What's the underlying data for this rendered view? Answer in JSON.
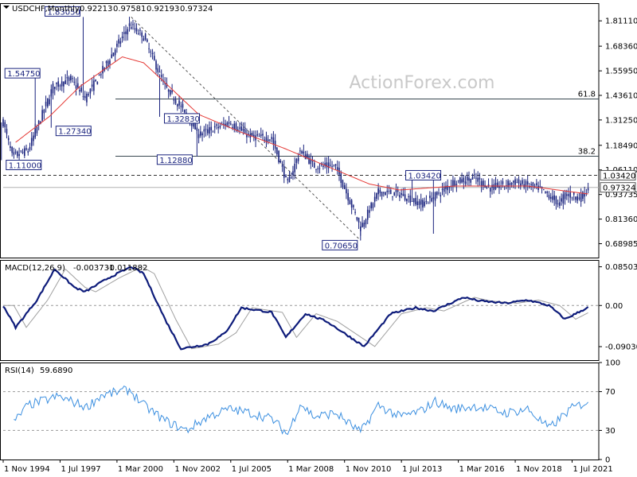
{
  "chart_data": {
    "type": "candlestick",
    "watermark": "ActionForex.com",
    "price_panel": {
      "header": {
        "symbol": "USDCHF,Monthly",
        "open": "0.92213",
        "high": "0.97581",
        "low": "0.92193",
        "close": "0.97324"
      },
      "ylim": [
        0.62,
        1.9
      ],
      "y_ticks": [
        1.8111,
        1.6836,
        1.5595,
        1.4361,
        1.3125,
        1.1849,
        1.0611,
        0.9373,
        0.8136,
        0.6899
      ],
      "y_tick_labels": [
        "1.81110",
        "1.68360",
        "1.55950",
        "1.43610",
        "1.31250",
        "1.18490",
        "1.06110",
        "0.93735",
        "0.81360",
        "0.68985"
      ],
      "current_price": "0.97324",
      "dashed_level": "1.03420",
      "fib_levels": [
        {
          "label": "61.8",
          "value": 1.418
        },
        {
          "label": "38.2",
          "value": 1.13
        }
      ],
      "annotations": [
        {
          "text": "1.83050",
          "date": "1998-08",
          "value": 1.8305
        },
        {
          "text": "1.54750",
          "date": "1996-05",
          "value": 1.5475
        },
        {
          "text": "1.27340",
          "date": "1997-02",
          "value": 1.2734
        },
        {
          "text": "1.11000",
          "date": "1994-10",
          "value": 1.11
        },
        {
          "text": "1.32830",
          "date": "2002-03",
          "value": 1.3283
        },
        {
          "text": "1.12880",
          "date": "2003-12",
          "value": 1.1288
        },
        {
          "text": "1.03420",
          "date": "2014-01",
          "value": 1.0342
        },
        {
          "text": "0.70650",
          "date": "2011-08",
          "value": 0.7065
        }
      ],
      "key_points": [
        {
          "date": "1994-11",
          "close": 1.3
        },
        {
          "date": "1995-04",
          "close": 1.13
        },
        {
          "date": "1996-01",
          "close": 1.16
        },
        {
          "date": "1997-03",
          "close": 1.48
        },
        {
          "date": "1998-01",
          "close": 1.52
        },
        {
          "date": "1998-09",
          "close": 1.42
        },
        {
          "date": "1999-06",
          "close": 1.55
        },
        {
          "date": "2000-10",
          "close": 1.79
        },
        {
          "date": "2001-06",
          "close": 1.73
        },
        {
          "date": "2002-06",
          "close": 1.48
        },
        {
          "date": "2003-06",
          "close": 1.34
        },
        {
          "date": "2004-01",
          "close": 1.24
        },
        {
          "date": "2005-06",
          "close": 1.3
        },
        {
          "date": "2006-06",
          "close": 1.23
        },
        {
          "date": "2007-06",
          "close": 1.22
        },
        {
          "date": "2008-03",
          "close": 0.99
        },
        {
          "date": "2008-10",
          "close": 1.16
        },
        {
          "date": "2009-06",
          "close": 1.08
        },
        {
          "date": "2010-06",
          "close": 1.08
        },
        {
          "date": "2011-08",
          "close": 0.77
        },
        {
          "date": "2012-06",
          "close": 0.95
        },
        {
          "date": "2013-06",
          "close": 0.94
        },
        {
          "date": "2014-06",
          "close": 0.89
        },
        {
          "date": "2015-02",
          "close": 0.93
        },
        {
          "date": "2015-12",
          "close": 1.0
        },
        {
          "date": "2016-12",
          "close": 1.02
        },
        {
          "date": "2017-09",
          "close": 0.97
        },
        {
          "date": "2018-11",
          "close": 1.0
        },
        {
          "date": "2019-12",
          "close": 0.97
        },
        {
          "date": "2020-12",
          "close": 0.89
        },
        {
          "date": "2021-03",
          "close": 0.94
        },
        {
          "date": "2021-12",
          "close": 0.92
        },
        {
          "date": "2022-04",
          "close": 0.97
        }
      ],
      "moving_average": [
        {
          "date": "1995-06",
          "value": 1.2
        },
        {
          "date": "1997-01",
          "value": 1.33
        },
        {
          "date": "1998-06",
          "value": 1.48
        },
        {
          "date": "2000-06",
          "value": 1.63
        },
        {
          "date": "2001-06",
          "value": 1.6
        },
        {
          "date": "2002-06",
          "value": 1.5
        },
        {
          "date": "2004-01",
          "value": 1.34
        },
        {
          "date": "2006-01",
          "value": 1.25
        },
        {
          "date": "2008-01",
          "value": 1.17
        },
        {
          "date": "2010-01",
          "value": 1.08
        },
        {
          "date": "2012-01",
          "value": 0.99
        },
        {
          "date": "2013-06",
          "value": 0.96
        },
        {
          "date": "2016-01",
          "value": 0.98
        },
        {
          "date": "2019-06",
          "value": 0.98
        },
        {
          "date": "2022-04",
          "value": 0.94
        }
      ],
      "trendline": [
        {
          "date": "2000-11",
          "value": 1.8305
        },
        {
          "date": "2011-08",
          "value": 0.7065
        }
      ]
    },
    "macd_panel": {
      "header": {
        "name": "MACD(12,26,9)",
        "macd": "-0.003731",
        "signal": "-0.011882"
      },
      "ylim": [
        -0.12,
        0.1
      ],
      "y_ticks": [
        0.085032,
        0.0,
        -0.090302
      ],
      "y_tick_labels": [
        "0.085032",
        "0.00",
        "-0.090302"
      ],
      "macd_points": [
        {
          "date": "1994-11",
          "value": 0.0
        },
        {
          "date": "1995-06",
          "value": -0.048
        },
        {
          "date": "1996-06",
          "value": 0.012
        },
        {
          "date": "1997-04",
          "value": 0.08
        },
        {
          "date": "1998-03",
          "value": 0.04
        },
        {
          "date": "1998-09",
          "value": 0.03
        },
        {
          "date": "1999-10",
          "value": 0.06
        },
        {
          "date": "2000-11",
          "value": 0.085
        },
        {
          "date": "2001-06",
          "value": 0.07
        },
        {
          "date": "2002-06",
          "value": -0.03
        },
        {
          "date": "2003-03",
          "value": -0.095
        },
        {
          "date": "2004-06",
          "value": -0.085
        },
        {
          "date": "2005-04",
          "value": -0.06
        },
        {
          "date": "2006-01",
          "value": -0.005
        },
        {
          "date": "2007-06",
          "value": -0.015
        },
        {
          "date": "2008-02",
          "value": -0.07
        },
        {
          "date": "2009-01",
          "value": -0.018
        },
        {
          "date": "2010-01",
          "value": -0.035
        },
        {
          "date": "2011-10",
          "value": -0.09
        },
        {
          "date": "2013-01",
          "value": -0.018
        },
        {
          "date": "2014-03",
          "value": -0.005
        },
        {
          "date": "2015-01",
          "value": -0.012
        },
        {
          "date": "2016-06",
          "value": 0.018
        },
        {
          "date": "2017-03",
          "value": 0.01
        },
        {
          "date": "2018-06",
          "value": 0.005
        },
        {
          "date": "2019-06",
          "value": 0.012
        },
        {
          "date": "2020-06",
          "value": 0.0
        },
        {
          "date": "2021-03",
          "value": -0.03
        },
        {
          "date": "2022-04",
          "value": -0.004
        }
      ]
    },
    "rsi_panel": {
      "header": {
        "name": "RSI(14)",
        "value": "59.6890"
      },
      "ylim": [
        0,
        100
      ],
      "y_ticks": [
        100,
        70,
        30,
        0
      ],
      "levels": [
        70,
        30
      ],
      "rsi_points": [
        {
          "date": "1994-11",
          "value": 46
        },
        {
          "date": "1995-04",
          "value": 36
        },
        {
          "date": "1996-01",
          "value": 56
        },
        {
          "date": "1997-06",
          "value": 65
        },
        {
          "date": "1998-10",
          "value": 54
        },
        {
          "date": "1999-06",
          "value": 66
        },
        {
          "date": "2000-10",
          "value": 72
        },
        {
          "date": "2001-06",
          "value": 56
        },
        {
          "date": "2002-06",
          "value": 40
        },
        {
          "date": "2003-06",
          "value": 30
        },
        {
          "date": "2004-06",
          "value": 44
        },
        {
          "date": "2005-06",
          "value": 52
        },
        {
          "date": "2006-06",
          "value": 48
        },
        {
          "date": "2007-06",
          "value": 42
        },
        {
          "date": "2008-03",
          "value": 26
        },
        {
          "date": "2008-10",
          "value": 58
        },
        {
          "date": "2009-06",
          "value": 44
        },
        {
          "date": "2010-06",
          "value": 48
        },
        {
          "date": "2011-08",
          "value": 28
        },
        {
          "date": "2012-06",
          "value": 56
        },
        {
          "date": "2013-06",
          "value": 44
        },
        {
          "date": "2014-06",
          "value": 50
        },
        {
          "date": "2015-02",
          "value": 60
        },
        {
          "date": "2015-12",
          "value": 52
        },
        {
          "date": "2017-01",
          "value": 55
        },
        {
          "date": "2018-06",
          "value": 48
        },
        {
          "date": "2019-06",
          "value": 52
        },
        {
          "date": "2020-06",
          "value": 32
        },
        {
          "date": "2021-06",
          "value": 52
        },
        {
          "date": "2022-04",
          "value": 60
        }
      ]
    },
    "x_axis": {
      "date_range": [
        "1994-11",
        "2022-10"
      ],
      "ticks": [
        {
          "date": "1994-11",
          "label": "1 Nov 1994"
        },
        {
          "date": "1997-07",
          "label": "1 Jul 1997"
        },
        {
          "date": "2000-03",
          "label": "1 Mar 2000"
        },
        {
          "date": "2002-11",
          "label": "1 Nov 2002"
        },
        {
          "date": "2005-07",
          "label": "1 Jul 2005"
        },
        {
          "date": "2008-03",
          "label": "1 Mar 2008"
        },
        {
          "date": "2010-11",
          "label": "1 Nov 2010"
        },
        {
          "date": "2013-07",
          "label": "1 Jul 2013"
        },
        {
          "date": "2016-03",
          "label": "1 Mar 2016"
        },
        {
          "date": "2018-11",
          "label": "1 Nov 2018"
        },
        {
          "date": "2021-07",
          "label": "1 Jul 2021"
        }
      ]
    },
    "colors": {
      "candles": "#1a237e",
      "moving_average": "#e53935",
      "macd": "#0d1b7a",
      "macd_signal": "#a0a0a0",
      "rsi": "#3b8fe0",
      "levels": "#37474f"
    }
  }
}
